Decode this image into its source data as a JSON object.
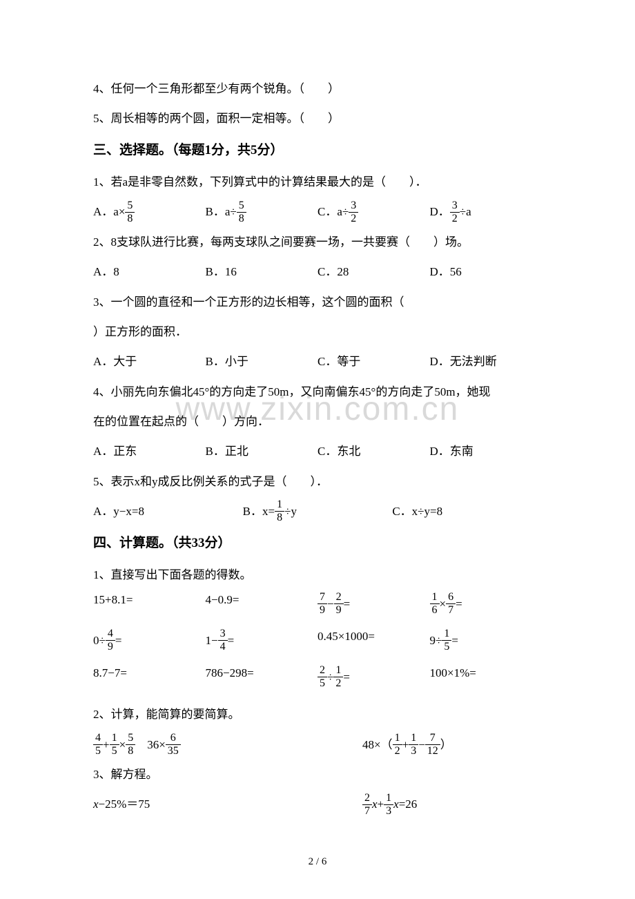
{
  "judge": {
    "q4": "4、任何一个三角形都至少有两个锐角。（　　）",
    "q5": "5、周长相等的两个圆，面积一定相等。（　　）"
  },
  "section3": {
    "heading": "三、选择题。（每题1分，共5分）",
    "q1": {
      "text": "1、若a是非零自然数，下列算式中的计算结果最大的是（　　）．",
      "optA_pre": "A．a×",
      "optA_num": "5",
      "optA_den": "8",
      "optB_pre": "B．a÷",
      "optB_num": "5",
      "optB_den": "8",
      "optC_pre": "C．a÷",
      "optC_num": "3",
      "optC_den": "2",
      "optD_pre": "D．",
      "optD_num": "3",
      "optD_den": "2",
      "optD_post": "÷a"
    },
    "q2": {
      "text": "2、8支球队进行比赛，每两支球队之间要赛一场，一共要赛（　　）场。",
      "optA": "A．8",
      "optB": "B．16",
      "optC": "C．28",
      "optD": "D．56"
    },
    "q3": {
      "text1": "3、一个圆的直径和一个正方形的边长相等，这个圆的面积（　　",
      "text2": "）正方形的面积．",
      "optA": "A．大于",
      "optB": "B．小于",
      "optC": "C．等于",
      "optD": "D．无法判断"
    },
    "q4": {
      "text1": "4、小丽先向东偏北45°的方向走了50m，又向南偏东45°的方向走了50m，她现",
      "text2": "在的位置在起点的（　　）方向．",
      "optA": "A．正东",
      "optB": "B．正北",
      "optC": "C．东北",
      "optD": "D．东南"
    },
    "q5": {
      "text": "5、表示x和y成反比例关系的式子是（　　）．",
      "optA": "A．y−x=8",
      "optB_pre": "B．x=",
      "optB_num": "1",
      "optB_den": "8",
      "optB_post": "÷y",
      "optC": "C．x÷y=8"
    }
  },
  "section4": {
    "heading": "四、计算题。（共33分）",
    "q1_text": "1、直接写出下面各题的得数。",
    "row1": {
      "c1": "15+8.1=",
      "c2": "4−0.9=",
      "c3_n1": "7",
      "c3_d1": "9",
      "c3_op": "−",
      "c3_n2": "2",
      "c3_d2": "9",
      "c3_eq": "=",
      "c4_n1": "1",
      "c4_d1": "6",
      "c4_op": "×",
      "c4_n2": "6",
      "c4_d2": "7",
      "c4_eq": "="
    },
    "row2": {
      "c1_pre": "0÷",
      "c1_n": "4",
      "c1_d": "9",
      "c1_eq": "=",
      "c2_pre": "1−",
      "c2_n": "3",
      "c2_d": "4",
      "c2_eq": "=",
      "c3": "0.45×1000=",
      "c4_pre": "9÷",
      "c4_n": "1",
      "c4_d": "5",
      "c4_eq": "="
    },
    "row3": {
      "c1": "8.7−7=",
      "c2": "786−298=",
      "c3_n1": "2",
      "c3_d1": "5",
      "c3_op": "÷",
      "c3_n2": "1",
      "c3_d2": "2",
      "c3_eq": "=",
      "c4": "100×1%="
    },
    "q2_text": "2、计算，能简算的要简算。",
    "simp": {
      "l1_n1": "4",
      "l1_d1": "5",
      "l1_op1": "+",
      "l1_n2": "1",
      "l1_d2": "5",
      "l1_op2": "×",
      "l1_n3": "5",
      "l1_d3": "8",
      "l1_sp": "　",
      "l2_pre": "36×",
      "l2_n": "6",
      "l2_d": "35",
      "r_pre": "48×（",
      "r_n1": "1",
      "r_d1": "2",
      "r_op1": "+",
      "r_n2": "1",
      "r_d2": "3",
      "r_op2": "−",
      "r_n3": "7",
      "r_d3": "12",
      "r_post": "）"
    },
    "q3_text": "3、解方程。",
    "eq": {
      "left_x": "x",
      "left_rest": "−25%＝75",
      "r_n1": "2",
      "r_d1": "7",
      "r_x1": "x",
      "r_op": "+",
      "r_n2": "1",
      "r_d2": "3",
      "r_x2": "x",
      "r_eq": "=26"
    }
  },
  "watermark": "www.zixin.com.cn",
  "page": "2 / 6"
}
